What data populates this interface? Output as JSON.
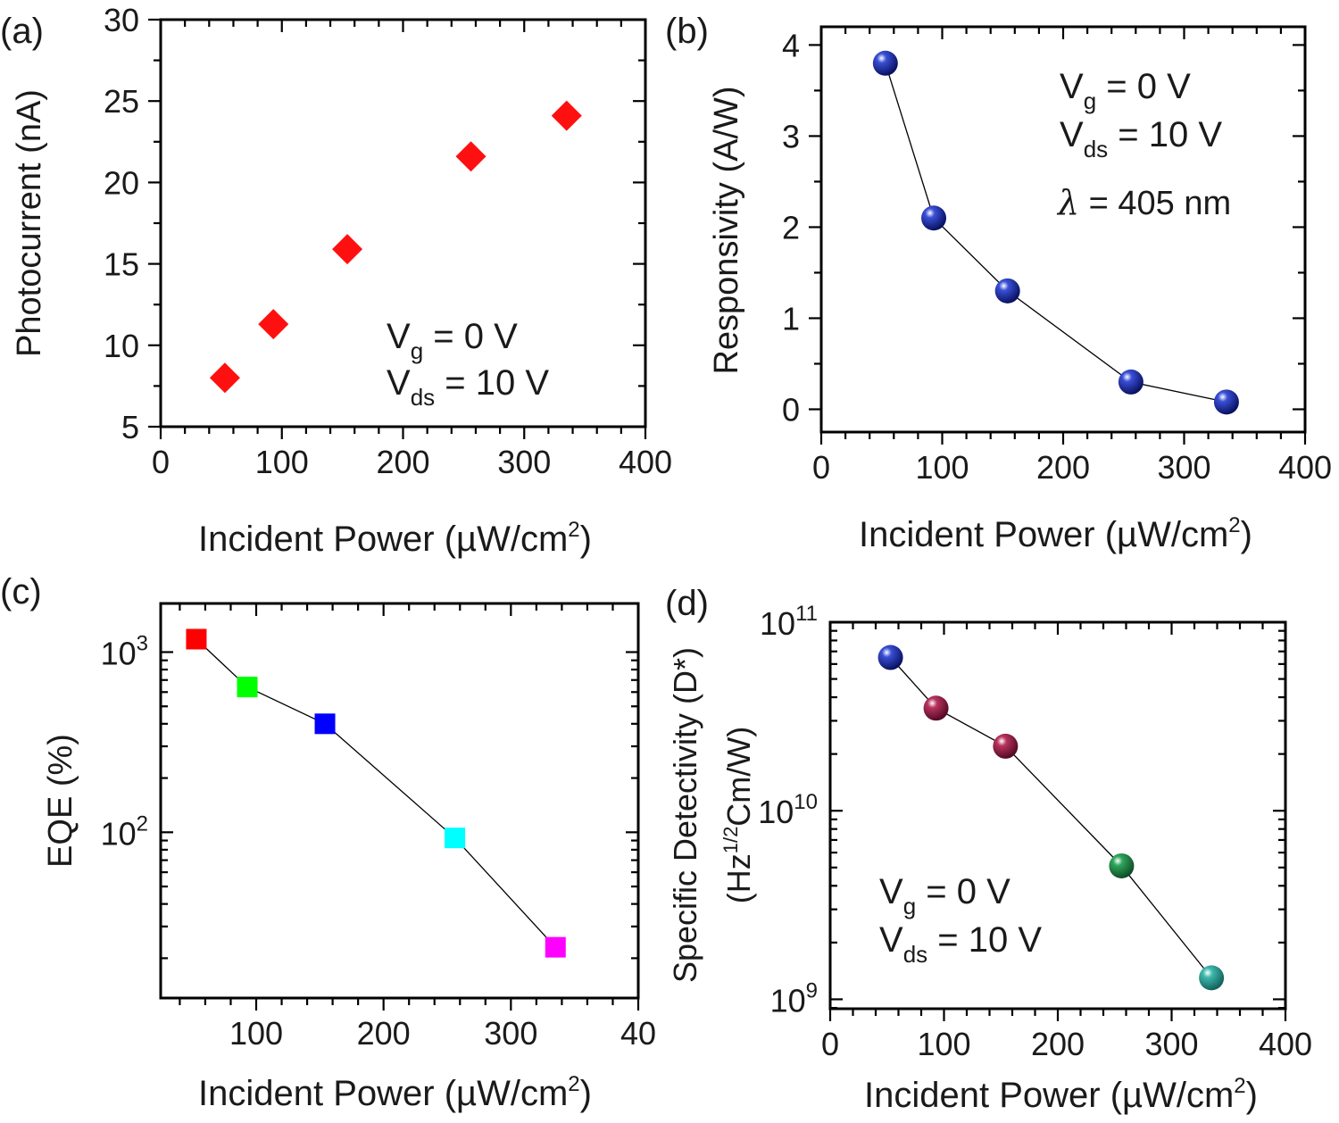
{
  "colors": {
    "diamond": "#ff1010",
    "sphere_blue": "#0a1a9c",
    "sphere_maroon": "#8a0f3a",
    "sphere_green": "#157a3c",
    "sphere_teal": "#1e8f86",
    "square_red": "#ff0000",
    "square_green": "#00ff00",
    "square_blue": "#0000ff",
    "square_cyan": "#00ffff",
    "square_magenta": "#ff00ff"
  },
  "chart_data": [
    {
      "panel": "(a)",
      "type": "scatter",
      "xlabel": "Incident Power  (µW/cm",
      "xlabel_sup": "2",
      "xlabel_end": ")",
      "ylabel": "Photocurrent (nA)",
      "xlim": [
        0,
        400
      ],
      "ylim": [
        5,
        30
      ],
      "xticks": [
        "0",
        "100",
        "200",
        "300",
        "400"
      ],
      "yticks": [
        "5",
        "10",
        "15",
        "20",
        "25",
        "30"
      ],
      "marker": "diamond",
      "connected": false,
      "x": [
        53,
        93,
        154,
        256,
        335
      ],
      "y": [
        8.0,
        11.3,
        15.9,
        21.6,
        24.1
      ],
      "annotation": {
        "line1": "V",
        "sub1": "g",
        "rest1": " = 0 V",
        "line2": "V",
        "sub2": "ds",
        "rest2": " = 10 V"
      }
    },
    {
      "panel": "(b)",
      "type": "line",
      "xlabel": "Incident Power  (µW/cm",
      "xlabel_sup": "2",
      "xlabel_end": ")",
      "ylabel": "Responsivity (A/W)",
      "xlim": [
        0,
        400
      ],
      "ylim": [
        -0.25,
        4.2
      ],
      "xticks": [
        "0",
        "100",
        "200",
        "300",
        "400"
      ],
      "yticks": [
        "0",
        "1",
        "2",
        "3",
        "4"
      ],
      "marker": "sphere",
      "connected": true,
      "x": [
        53,
        93,
        154,
        256,
        335
      ],
      "y": [
        3.8,
        2.1,
        1.3,
        0.3,
        0.08
      ],
      "annotation": {
        "line1": "V",
        "sub1": "g",
        "rest1": " = 0 V",
        "line2": "V",
        "sub2": "ds",
        "rest2": " = 10 V",
        "line3a": "λ",
        "line3b": " = 405 nm"
      }
    },
    {
      "panel": "(c)",
      "type": "line",
      "xlabel": "Incident Power  (µW/cm",
      "xlabel_sup": "2",
      "xlabel_end": ")",
      "ylabel": "EQE (%)",
      "xlim": [
        25,
        400
      ],
      "ylim_log10": [
        1.08,
        3.27
      ],
      "log_y": true,
      "xticks": [
        "100",
        "200",
        "300",
        "40"
      ],
      "ytick_base": "10",
      "ytick_exps": [
        "2",
        "3"
      ],
      "marker": "square",
      "connected": true,
      "x": [
        53,
        93,
        154,
        256,
        335
      ],
      "y": [
        1180,
        640,
        400,
        93,
        23
      ]
    },
    {
      "panel": "(d)",
      "type": "line",
      "xlabel": "Incident Power  (µW/cm",
      "xlabel_sup": "2",
      "xlabel_end": ")",
      "ylabel": "Specific Detectivity (D*)",
      "ylabel2": "(Hz",
      "ylabel2_sup": "1/2",
      "ylabel2_end": "Cm/W)",
      "xlim": [
        0,
        400
      ],
      "ylim_log10": [
        8.95,
        11.0
      ],
      "log_y": true,
      "xticks": [
        "0",
        "100",
        "200",
        "300",
        "400"
      ],
      "ytick_base": "10",
      "ytick_exps": [
        "9",
        "10",
        "11"
      ],
      "marker": "sphere",
      "connected": true,
      "x": [
        53,
        93,
        154,
        256,
        335
      ],
      "y": [
        65000000000,
        35000000000,
        22000000000,
        5100000000,
        1300000000
      ],
      "annotation": {
        "line1": "V",
        "sub1": "g",
        "rest1": " = 0 V",
        "line2": "V",
        "sub2": "ds",
        "rest2": " = 10 V"
      }
    }
  ]
}
